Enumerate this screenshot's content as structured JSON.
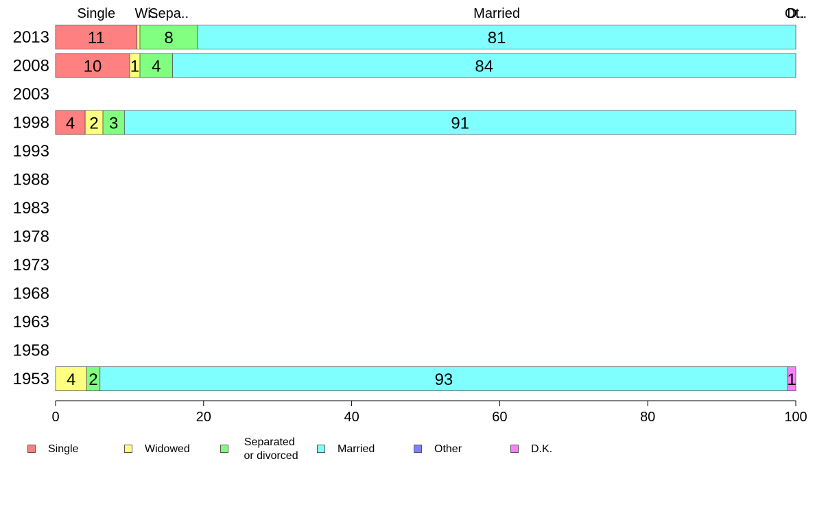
{
  "chart_data": {
    "type": "bar",
    "orientation": "horizontal",
    "stacked": true,
    "categories": [
      "2013",
      "2008",
      "2003",
      "1998",
      "1993",
      "1988",
      "1983",
      "1978",
      "1973",
      "1968",
      "1963",
      "1958",
      "1953"
    ],
    "series": [
      {
        "name": "Single",
        "color": "#ff8080",
        "values": [
          11,
          10,
          null,
          4,
          null,
          null,
          null,
          null,
          null,
          null,
          null,
          null,
          0
        ]
      },
      {
        "name": "Widowed",
        "color": "#ffff80",
        "values": [
          0.4,
          1.4,
          null,
          2.4,
          null,
          null,
          null,
          null,
          null,
          null,
          null,
          null,
          4.2
        ]
      },
      {
        "name": "Separated\n or divorced",
        "color": "#80ff80",
        "values": [
          7.8,
          4.4,
          null,
          2.9,
          null,
          null,
          null,
          null,
          null,
          null,
          null,
          null,
          1.8
        ]
      },
      {
        "name": "Married",
        "color": "#80ffff",
        "values": [
          80.8,
          84.2,
          null,
          90.7,
          null,
          null,
          null,
          null,
          null,
          null,
          null,
          null,
          92.9
        ]
      },
      {
        "name": "Other",
        "color": "#8080ff",
        "values": [
          0,
          0,
          null,
          0,
          null,
          null,
          null,
          null,
          null,
          null,
          null,
          null,
          0
        ]
      },
      {
        "name": "D.K.",
        "color": "#ff80ff",
        "values": [
          0,
          0,
          null,
          0,
          null,
          null,
          null,
          null,
          null,
          null,
          null,
          null,
          1.1
        ]
      }
    ],
    "data_labels": {
      "2013": [
        "11",
        "",
        "8",
        "81",
        "",
        ""
      ],
      "2008": [
        "10",
        "1",
        "4",
        "84",
        "",
        ""
      ],
      "1998": [
        "4",
        "2",
        "3",
        "91",
        "",
        ""
      ],
      "1953": [
        "",
        "4",
        "2",
        "93",
        "",
        "1"
      ]
    },
    "top_labels": [
      {
        "text": "Single",
        "segment": 0
      },
      {
        "text": "Wi..",
        "segment": 1
      },
      {
        "text": "Sepa..",
        "segment": 2
      },
      {
        "text": "Married",
        "segment": 3
      },
      {
        "text": "Ot..",
        "segment": 4
      },
      {
        "text": "D..",
        "segment": 5
      }
    ],
    "xlim": [
      0,
      100
    ],
    "xticks": [
      0,
      20,
      40,
      60,
      80,
      100
    ],
    "title": "",
    "xlabel": "",
    "ylabel": "",
    "legend_position": "bottom",
    "grid": false
  }
}
